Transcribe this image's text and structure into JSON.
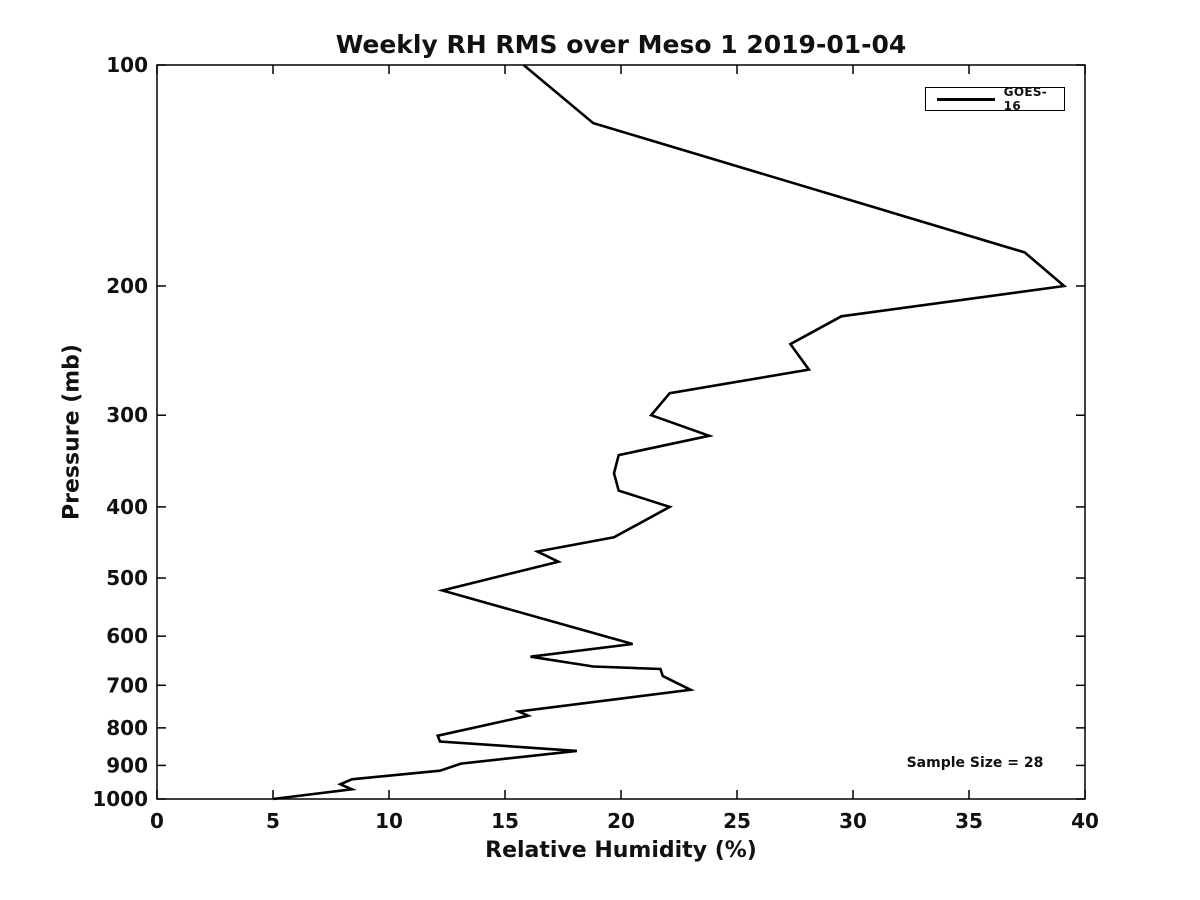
{
  "figure": {
    "background_color": "#ffffff",
    "text_color": "#111111"
  },
  "legend": {
    "label": "GOES-16",
    "line_color": "#000000"
  },
  "annotation": {
    "sample_size": "Sample Size = 28"
  },
  "chart_data": {
    "type": "line",
    "title": "Weekly RH RMS over Meso 1 2019-01-04",
    "xlabel": "Relative Humidity (%)",
    "ylabel": "Pressure (mb)",
    "xlim": [
      0,
      40
    ],
    "ylim": [
      100,
      1000
    ],
    "yscale": "log",
    "y_inverted": true,
    "grid": false,
    "legend_position": "top-right",
    "xticks": [
      0,
      5,
      10,
      15,
      20,
      25,
      30,
      35,
      40
    ],
    "yticks": [
      100,
      200,
      300,
      400,
      500,
      600,
      700,
      800,
      900,
      1000
    ],
    "annotations": [
      {
        "text": "Sample Size = 28",
        "x_percent": 35.0,
        "y_mb": 890
      }
    ],
    "series": [
      {
        "name": "GOES-16",
        "color": "#000000",
        "points_pressure_rh": [
          [
            100,
            15.8
          ],
          [
            120,
            18.8
          ],
          [
            180,
            37.4
          ],
          [
            200,
            39.1
          ],
          [
            220,
            29.5
          ],
          [
            240,
            27.3
          ],
          [
            260,
            28.1
          ],
          [
            280,
            22.1
          ],
          [
            300,
            21.3
          ],
          [
            320,
            23.8
          ],
          [
            340,
            19.9
          ],
          [
            360,
            19.7
          ],
          [
            380,
            19.9
          ],
          [
            400,
            22.1
          ],
          [
            440,
            19.7
          ],
          [
            460,
            16.4
          ],
          [
            475,
            17.3
          ],
          [
            520,
            12.3
          ],
          [
            615,
            20.5
          ],
          [
            640,
            16.1
          ],
          [
            660,
            18.8
          ],
          [
            665,
            21.7
          ],
          [
            680,
            21.8
          ],
          [
            710,
            23.0
          ],
          [
            760,
            15.6
          ],
          [
            770,
            16.0
          ],
          [
            820,
            12.1
          ],
          [
            835,
            12.2
          ],
          [
            860,
            18.1
          ],
          [
            895,
            13.1
          ],
          [
            915,
            12.2
          ],
          [
            940,
            8.4
          ],
          [
            955,
            7.9
          ],
          [
            970,
            8.4
          ],
          [
            1000,
            5.0
          ]
        ]
      }
    ]
  }
}
